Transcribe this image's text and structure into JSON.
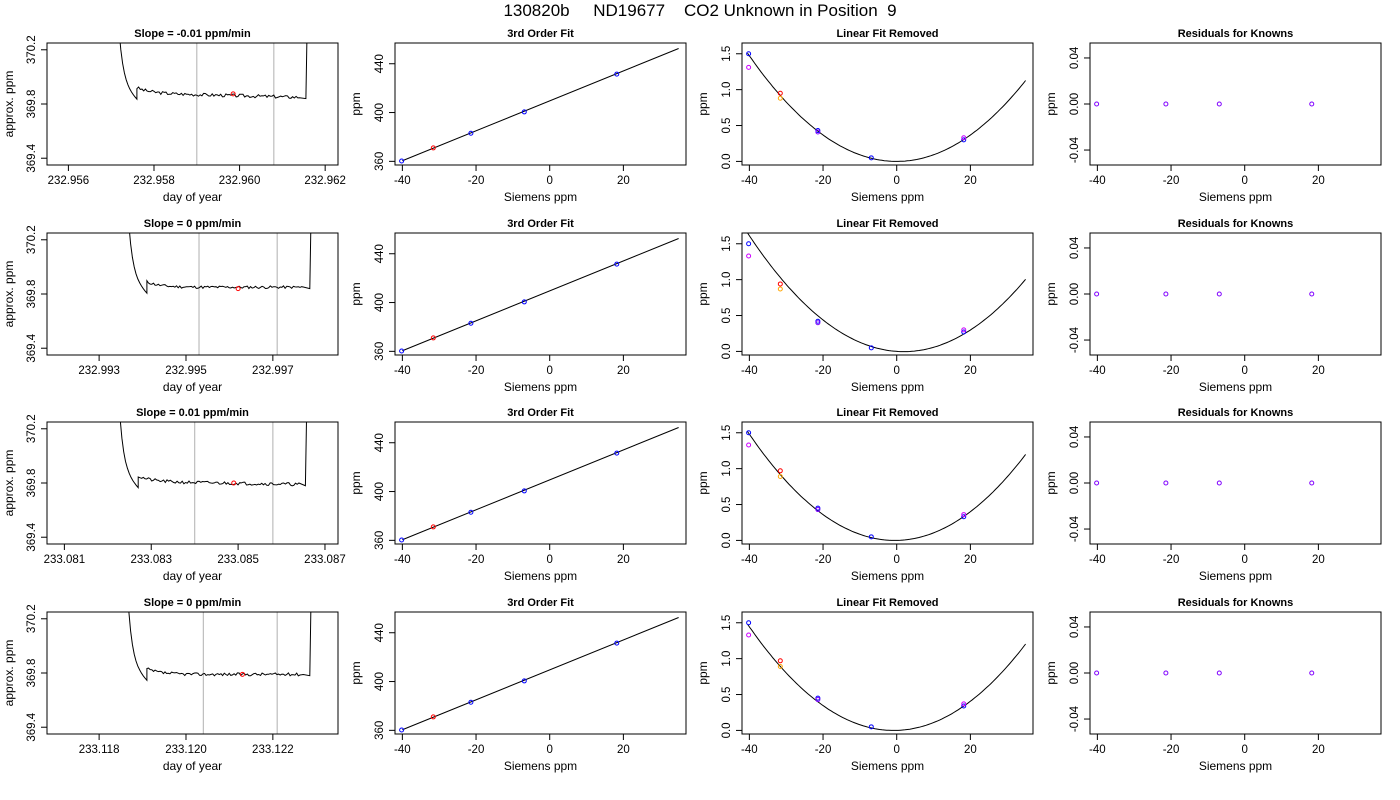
{
  "figure_title": "130820b     ND19677    CO2 Unknown in Position  9",
  "colors": {
    "line": "#000000",
    "grid_vline": "#bdbdbd",
    "red": "#ff0000",
    "blue": "#0000ff",
    "magenta": "#cc00ff",
    "orange": "#ffa500",
    "purple": "#8000ff"
  },
  "chart_data": [
    {
      "type": "line",
      "panel": "trace",
      "row": 1,
      "title": "Slope =  -0.01  ppm/min",
      "xlabel": "day of year",
      "ylabel": "approx. ppm",
      "xlim": [
        232.9555,
        232.9623
      ],
      "ylim": [
        369.35,
        370.25
      ],
      "xticks": [
        232.956,
        232.958,
        232.96,
        232.962
      ],
      "xtick_labels": [
        "232.956",
        "232.958",
        "232.960",
        "232.962"
      ],
      "yticks": [
        369.4,
        369.8,
        370.2
      ],
      "ytick_labels": [
        "369.4",
        "369.8",
        "370.2"
      ],
      "vlines": [
        232.959,
        232.9608
      ],
      "trace": {
        "x_start": 232.9571,
        "x_rise": 232.9574,
        "x_plateau": 232.9576,
        "x_end": 232.9614,
        "x_jump": 232.96155,
        "plateau_start": 369.88,
        "plateau_end": 369.85,
        "noise": 0.012,
        "steps": 95,
        "seed": 3
      },
      "marker": {
        "x": 232.95985,
        "y": 369.875,
        "color": "red"
      }
    },
    {
      "type": "line",
      "panel": "trace",
      "row": 2,
      "title": "Slope =  0  ppm/min",
      "xlabel": "day of year",
      "ylabel": "approx. ppm",
      "xlim": [
        232.9918,
        232.9985
      ],
      "ylim": [
        369.35,
        370.25
      ],
      "xticks": [
        232.993,
        232.995,
        232.997
      ],
      "xtick_labels": [
        "232.993",
        "232.995",
        "232.997"
      ],
      "yticks": [
        369.4,
        369.8,
        370.2
      ],
      "ytick_labels": [
        "369.4",
        "369.8",
        "370.2"
      ],
      "vlines": [
        232.9953,
        232.9971
      ],
      "trace": {
        "x_start": 232.9936,
        "x_rise": 232.9939,
        "x_plateau": 232.9941,
        "x_end": 232.9977,
        "x_jump": 232.99785,
        "plateau_start": 369.85,
        "plateau_end": 369.85,
        "noise": 0.01,
        "steps": 95,
        "seed": 11
      },
      "marker": {
        "x": 232.9962,
        "y": 369.84,
        "color": "red"
      }
    },
    {
      "type": "line",
      "panel": "trace",
      "row": 3,
      "title": "Slope =  0.01  ppm/min",
      "xlabel": "day of year",
      "ylabel": "approx. ppm",
      "xlim": [
        233.0806,
        233.0873
      ],
      "ylim": [
        369.35,
        370.25
      ],
      "xticks": [
        233.081,
        233.083,
        233.085,
        233.087
      ],
      "xtick_labels": [
        "233.081",
        "233.083",
        "233.085",
        "233.087"
      ],
      "yticks": [
        369.4,
        369.8,
        370.2
      ],
      "ytick_labels": [
        "369.4",
        "369.8",
        "370.2"
      ],
      "vlines": [
        233.084,
        233.0858
      ],
      "trace": {
        "x_start": 233.0822,
        "x_rise": 233.0825,
        "x_plateau": 233.0827,
        "x_end": 233.0864,
        "x_jump": 233.08655,
        "plateau_start": 369.81,
        "plateau_end": 369.79,
        "noise": 0.012,
        "steps": 95,
        "seed": 21
      },
      "marker": {
        "x": 233.0849,
        "y": 369.8,
        "color": "red"
      }
    },
    {
      "type": "line",
      "panel": "trace",
      "row": 4,
      "title": "Slope =  0  ppm/min",
      "xlabel": "day of year",
      "ylabel": "approx. ppm",
      "xlim": [
        233.1168,
        233.1235
      ],
      "ylim": [
        369.35,
        370.25
      ],
      "xticks": [
        233.118,
        233.12,
        233.122
      ],
      "xtick_labels": [
        "233.118",
        "233.120",
        "233.122"
      ],
      "yticks": [
        369.4,
        369.8,
        370.2
      ],
      "ytick_labels": [
        "369.4",
        "369.8",
        "370.2"
      ],
      "vlines": [
        233.1204,
        233.1221
      ],
      "trace": {
        "x_start": 233.1186,
        "x_rise": 233.1189,
        "x_plateau": 233.1191,
        "x_end": 233.1227,
        "x_jump": 233.12285,
        "plateau_start": 369.79,
        "plateau_end": 369.79,
        "noise": 0.011,
        "steps": 95,
        "seed": 37
      },
      "marker": {
        "x": 233.1213,
        "y": 369.79,
        "color": "red"
      }
    },
    {
      "type": "scatter",
      "panel": "fit",
      "row": 1,
      "title": "3rd Order Fit",
      "xlabel": "Siemens ppm",
      "ylabel": "ppm",
      "xlim": [
        -42,
        37
      ],
      "ylim": [
        357,
        457
      ],
      "xticks": [
        -40,
        -20,
        0,
        20
      ],
      "xtick_labels": [
        "-40",
        "-20",
        "0",
        "20"
      ],
      "yticks": [
        360,
        400,
        440
      ],
      "ytick_labels": [
        "360",
        "400",
        "440"
      ],
      "fit_line": {
        "x": [
          -40,
          35
        ],
        "y": [
          360.5,
          452.5
        ]
      },
      "points": [
        {
          "x": -40.2,
          "y": 360.3,
          "color": "blue"
        },
        {
          "x": -31.6,
          "y": 371.0,
          "color": "red"
        },
        {
          "x": -21.4,
          "y": 383.0,
          "color": "blue"
        },
        {
          "x": -6.9,
          "y": 400.5,
          "color": "blue"
        },
        {
          "x": 18.2,
          "y": 431.5,
          "color": "blue"
        }
      ]
    },
    {
      "type": "scatter",
      "panel": "fit",
      "row": 2,
      "title": "3rd Order Fit",
      "xlabel": "Siemens ppm",
      "ylabel": "ppm",
      "xlim": [
        -42,
        37
      ],
      "ylim": [
        357,
        457
      ],
      "xticks": [
        -40,
        -20,
        0,
        20
      ],
      "xtick_labels": [
        "-40",
        "-20",
        "0",
        "20"
      ],
      "yticks": [
        360,
        400,
        440
      ],
      "ytick_labels": [
        "360",
        "400",
        "440"
      ],
      "fit_line": {
        "x": [
          -40,
          35
        ],
        "y": [
          360.5,
          452.5
        ]
      },
      "points": [
        {
          "x": -40.2,
          "y": 360.3,
          "color": "blue"
        },
        {
          "x": -31.6,
          "y": 371.0,
          "color": "red"
        },
        {
          "x": -21.4,
          "y": 383.0,
          "color": "blue"
        },
        {
          "x": -6.9,
          "y": 400.5,
          "color": "blue"
        },
        {
          "x": 18.2,
          "y": 431.5,
          "color": "blue"
        }
      ]
    },
    {
      "type": "scatter",
      "panel": "fit",
      "row": 3,
      "title": "3rd Order Fit",
      "xlabel": "Siemens ppm",
      "ylabel": "ppm",
      "xlim": [
        -42,
        37
      ],
      "ylim": [
        357,
        457
      ],
      "xticks": [
        -40,
        -20,
        0,
        20
      ],
      "xtick_labels": [
        "-40",
        "-20",
        "0",
        "20"
      ],
      "yticks": [
        360,
        400,
        440
      ],
      "ytick_labels": [
        "360",
        "400",
        "440"
      ],
      "fit_line": {
        "x": [
          -40,
          35
        ],
        "y": [
          360.5,
          452.5
        ]
      },
      "points": [
        {
          "x": -40.2,
          "y": 360.3,
          "color": "blue"
        },
        {
          "x": -31.6,
          "y": 371.0,
          "color": "red"
        },
        {
          "x": -21.4,
          "y": 383.0,
          "color": "blue"
        },
        {
          "x": -6.9,
          "y": 400.5,
          "color": "blue"
        },
        {
          "x": 18.2,
          "y": 431.5,
          "color": "blue"
        }
      ]
    },
    {
      "type": "scatter",
      "panel": "fit",
      "row": 4,
      "title": "3rd Order Fit",
      "xlabel": "Siemens ppm",
      "ylabel": "ppm",
      "xlim": [
        -42,
        37
      ],
      "ylim": [
        357,
        457
      ],
      "xticks": [
        -40,
        -20,
        0,
        20
      ],
      "xtick_labels": [
        "-40",
        "-20",
        "0",
        "20"
      ],
      "yticks": [
        360,
        400,
        440
      ],
      "ytick_labels": [
        "360",
        "400",
        "440"
      ],
      "fit_line": {
        "x": [
          -40,
          35
        ],
        "y": [
          360.5,
          452.5
        ]
      },
      "points": [
        {
          "x": -40.2,
          "y": 360.3,
          "color": "blue"
        },
        {
          "x": -31.6,
          "y": 371.0,
          "color": "red"
        },
        {
          "x": -21.4,
          "y": 383.0,
          "color": "blue"
        },
        {
          "x": -6.9,
          "y": 400.5,
          "color": "blue"
        },
        {
          "x": 18.2,
          "y": 431.5,
          "color": "blue"
        }
      ]
    },
    {
      "type": "scatter",
      "panel": "linear_removed",
      "row": 1,
      "title": "Linear Fit Removed",
      "xlabel": "Siemens ppm",
      "ylabel": "ppm",
      "xlim": [
        -42,
        37
      ],
      "ylim": [
        -0.05,
        1.65
      ],
      "xticks": [
        -40,
        -20,
        0,
        20
      ],
      "xtick_labels": [
        "-40",
        "-20",
        "0",
        "20"
      ],
      "yticks": [
        0,
        0.5,
        1,
        1.5
      ],
      "ytick_labels": [
        "0.0",
        "0.5",
        "1.0",
        "1.5"
      ],
      "curve": {
        "a": 0.00092,
        "b": 0.0,
        "c": 0.0001,
        "x_from": -40.5,
        "x_to": 35
      },
      "points": [
        {
          "x": -40.2,
          "y": 1.5,
          "color": "blue"
        },
        {
          "x": -40.2,
          "y": 1.31,
          "color": "magenta"
        },
        {
          "x": -31.6,
          "y": 0.95,
          "color": "red"
        },
        {
          "x": -31.6,
          "y": 0.88,
          "color": "orange"
        },
        {
          "x": -21.4,
          "y": 0.43,
          "color": "blue"
        },
        {
          "x": -21.4,
          "y": 0.41,
          "color": "purple"
        },
        {
          "x": -6.9,
          "y": 0.05,
          "color": "blue"
        },
        {
          "x": 18.2,
          "y": 0.3,
          "color": "blue"
        },
        {
          "x": 18.2,
          "y": 0.33,
          "color": "magenta"
        }
      ]
    },
    {
      "type": "scatter",
      "panel": "linear_removed",
      "row": 2,
      "title": "Linear Fit Removed",
      "xlabel": "Siemens ppm",
      "ylabel": "ppm",
      "xlim": [
        -42,
        37
      ],
      "ylim": [
        -0.05,
        1.65
      ],
      "xticks": [
        -40,
        -20,
        0,
        20
      ],
      "xtick_labels": [
        "-40",
        "-20",
        "0",
        "20"
      ],
      "yticks": [
        0,
        0.5,
        1,
        1.5
      ],
      "ytick_labels": [
        "0.0",
        "0.5",
        "1.0",
        "1.5"
      ],
      "curve": {
        "a": 0.00092,
        "b": -0.0035,
        "c": 0.0001,
        "x_from": -40.5,
        "x_to": 35
      },
      "points": [
        {
          "x": -40.2,
          "y": 1.5,
          "color": "blue"
        },
        {
          "x": -40.2,
          "y": 1.33,
          "color": "magenta"
        },
        {
          "x": -31.6,
          "y": 0.94,
          "color": "red"
        },
        {
          "x": -31.6,
          "y": 0.87,
          "color": "orange"
        },
        {
          "x": -21.4,
          "y": 0.42,
          "color": "blue"
        },
        {
          "x": -21.4,
          "y": 0.4,
          "color": "purple"
        },
        {
          "x": -6.9,
          "y": 0.05,
          "color": "blue"
        },
        {
          "x": 18.2,
          "y": 0.27,
          "color": "blue"
        },
        {
          "x": 18.2,
          "y": 0.3,
          "color": "magenta"
        }
      ]
    },
    {
      "type": "scatter",
      "panel": "linear_removed",
      "row": 3,
      "title": "Linear Fit Removed",
      "xlabel": "Siemens ppm",
      "ylabel": "ppm",
      "xlim": [
        -42,
        37
      ],
      "ylim": [
        -0.05,
        1.65
      ],
      "xticks": [
        -40,
        -20,
        0,
        20
      ],
      "xtick_labels": [
        "-40",
        "-20",
        "0",
        "20"
      ],
      "yticks": [
        0,
        0.5,
        1,
        1.5
      ],
      "ytick_labels": [
        "0.0",
        "0.5",
        "1.0",
        "1.5"
      ],
      "curve": {
        "a": 0.00095,
        "b": 0.001,
        "c": 0.0001,
        "x_from": -40.5,
        "x_to": 35
      },
      "points": [
        {
          "x": -40.2,
          "y": 1.5,
          "color": "blue"
        },
        {
          "x": -40.2,
          "y": 1.33,
          "color": "magenta"
        },
        {
          "x": -31.6,
          "y": 0.97,
          "color": "red"
        },
        {
          "x": -31.6,
          "y": 0.89,
          "color": "orange"
        },
        {
          "x": -21.4,
          "y": 0.45,
          "color": "blue"
        },
        {
          "x": -21.4,
          "y": 0.43,
          "color": "purple"
        },
        {
          "x": -6.9,
          "y": 0.05,
          "color": "blue"
        },
        {
          "x": 18.2,
          "y": 0.33,
          "color": "blue"
        },
        {
          "x": 18.2,
          "y": 0.36,
          "color": "magenta"
        }
      ]
    },
    {
      "type": "scatter",
      "panel": "linear_removed",
      "row": 4,
      "title": "Linear Fit Removed",
      "xlabel": "Siemens ppm",
      "ylabel": "ppm",
      "xlim": [
        -42,
        37
      ],
      "ylim": [
        -0.05,
        1.65
      ],
      "xticks": [
        -40,
        -20,
        0,
        20
      ],
      "xtick_labels": [
        "-40",
        "-20",
        "0",
        "20"
      ],
      "yticks": [
        0,
        0.5,
        1,
        1.5
      ],
      "ytick_labels": [
        "0.0",
        "0.5",
        "1.0",
        "1.5"
      ],
      "curve": {
        "a": 0.00094,
        "b": 0.0015,
        "c": 0.0001,
        "x_from": -40.5,
        "x_to": 35
      },
      "points": [
        {
          "x": -40.2,
          "y": 1.5,
          "color": "blue"
        },
        {
          "x": -40.2,
          "y": 1.33,
          "color": "magenta"
        },
        {
          "x": -31.6,
          "y": 0.97,
          "color": "red"
        },
        {
          "x": -31.6,
          "y": 0.89,
          "color": "orange"
        },
        {
          "x": -21.4,
          "y": 0.45,
          "color": "blue"
        },
        {
          "x": -21.4,
          "y": 0.43,
          "color": "purple"
        },
        {
          "x": -6.9,
          "y": 0.05,
          "color": "blue"
        },
        {
          "x": 18.2,
          "y": 0.34,
          "color": "blue"
        },
        {
          "x": 18.2,
          "y": 0.37,
          "color": "magenta"
        }
      ]
    },
    {
      "type": "scatter",
      "panel": "residuals",
      "row": 1,
      "title": "Residuals for Knowns",
      "xlabel": "Siemens ppm",
      "ylabel": "ppm",
      "xlim": [
        -42,
        37
      ],
      "ylim": [
        -0.053,
        0.053
      ],
      "xticks": [
        -40,
        -20,
        0,
        20
      ],
      "xtick_labels": [
        "-40",
        "-20",
        "0",
        "20"
      ],
      "yticks": [
        -0.04,
        0,
        0.04
      ],
      "ytick_labels": [
        "-0.04",
        "0.00",
        "0.04"
      ],
      "points": [
        {
          "x": -40.2,
          "y": 0,
          "color": "purple"
        },
        {
          "x": -21.4,
          "y": 0,
          "color": "purple"
        },
        {
          "x": -6.9,
          "y": 0,
          "color": "purple"
        },
        {
          "x": 18.2,
          "y": 0,
          "color": "purple"
        }
      ]
    },
    {
      "type": "scatter",
      "panel": "residuals",
      "row": 2,
      "title": "Residuals for Knowns",
      "xlabel": "Siemens ppm",
      "ylabel": "ppm",
      "xlim": [
        -42,
        37
      ],
      "ylim": [
        -0.053,
        0.053
      ],
      "xticks": [
        -40,
        -20,
        0,
        20
      ],
      "xtick_labels": [
        "-40",
        "-20",
        "0",
        "20"
      ],
      "yticks": [
        -0.04,
        0,
        0.04
      ],
      "ytick_labels": [
        "-0.04",
        "0.00",
        "0.04"
      ],
      "points": [
        {
          "x": -40.2,
          "y": 0,
          "color": "purple"
        },
        {
          "x": -21.4,
          "y": 0,
          "color": "purple"
        },
        {
          "x": -6.9,
          "y": 0,
          "color": "purple"
        },
        {
          "x": 18.2,
          "y": 0,
          "color": "purple"
        }
      ]
    },
    {
      "type": "scatter",
      "panel": "residuals",
      "row": 3,
      "title": "Residuals for Knowns",
      "xlabel": "Siemens ppm",
      "ylabel": "ppm",
      "xlim": [
        -42,
        37
      ],
      "ylim": [
        -0.053,
        0.053
      ],
      "xticks": [
        -40,
        -20,
        0,
        20
      ],
      "xtick_labels": [
        "-40",
        "-20",
        "0",
        "20"
      ],
      "yticks": [
        -0.04,
        0,
        0.04
      ],
      "ytick_labels": [
        "-0.04",
        "0.00",
        "0.04"
      ],
      "points": [
        {
          "x": -40.2,
          "y": 0,
          "color": "purple"
        },
        {
          "x": -21.4,
          "y": 0,
          "color": "purple"
        },
        {
          "x": -6.9,
          "y": 0,
          "color": "purple"
        },
        {
          "x": 18.2,
          "y": 0,
          "color": "purple"
        }
      ]
    },
    {
      "type": "scatter",
      "panel": "residuals",
      "row": 4,
      "title": "Residuals for Knowns",
      "xlabel": "Siemens ppm",
      "ylabel": "ppm",
      "xlim": [
        -42,
        37
      ],
      "ylim": [
        -0.053,
        0.053
      ],
      "xticks": [
        -40,
        -20,
        0,
        20
      ],
      "xtick_labels": [
        "-40",
        "-20",
        "0",
        "20"
      ],
      "yticks": [
        -0.04,
        0,
        0.04
      ],
      "ytick_labels": [
        "-0.04",
        "0.00",
        "0.04"
      ],
      "points": [
        {
          "x": -40.2,
          "y": 0,
          "color": "purple"
        },
        {
          "x": -21.4,
          "y": 0,
          "color": "purple"
        },
        {
          "x": -6.9,
          "y": 0,
          "color": "purple"
        },
        {
          "x": 18.2,
          "y": 0,
          "color": "purple"
        }
      ]
    }
  ]
}
